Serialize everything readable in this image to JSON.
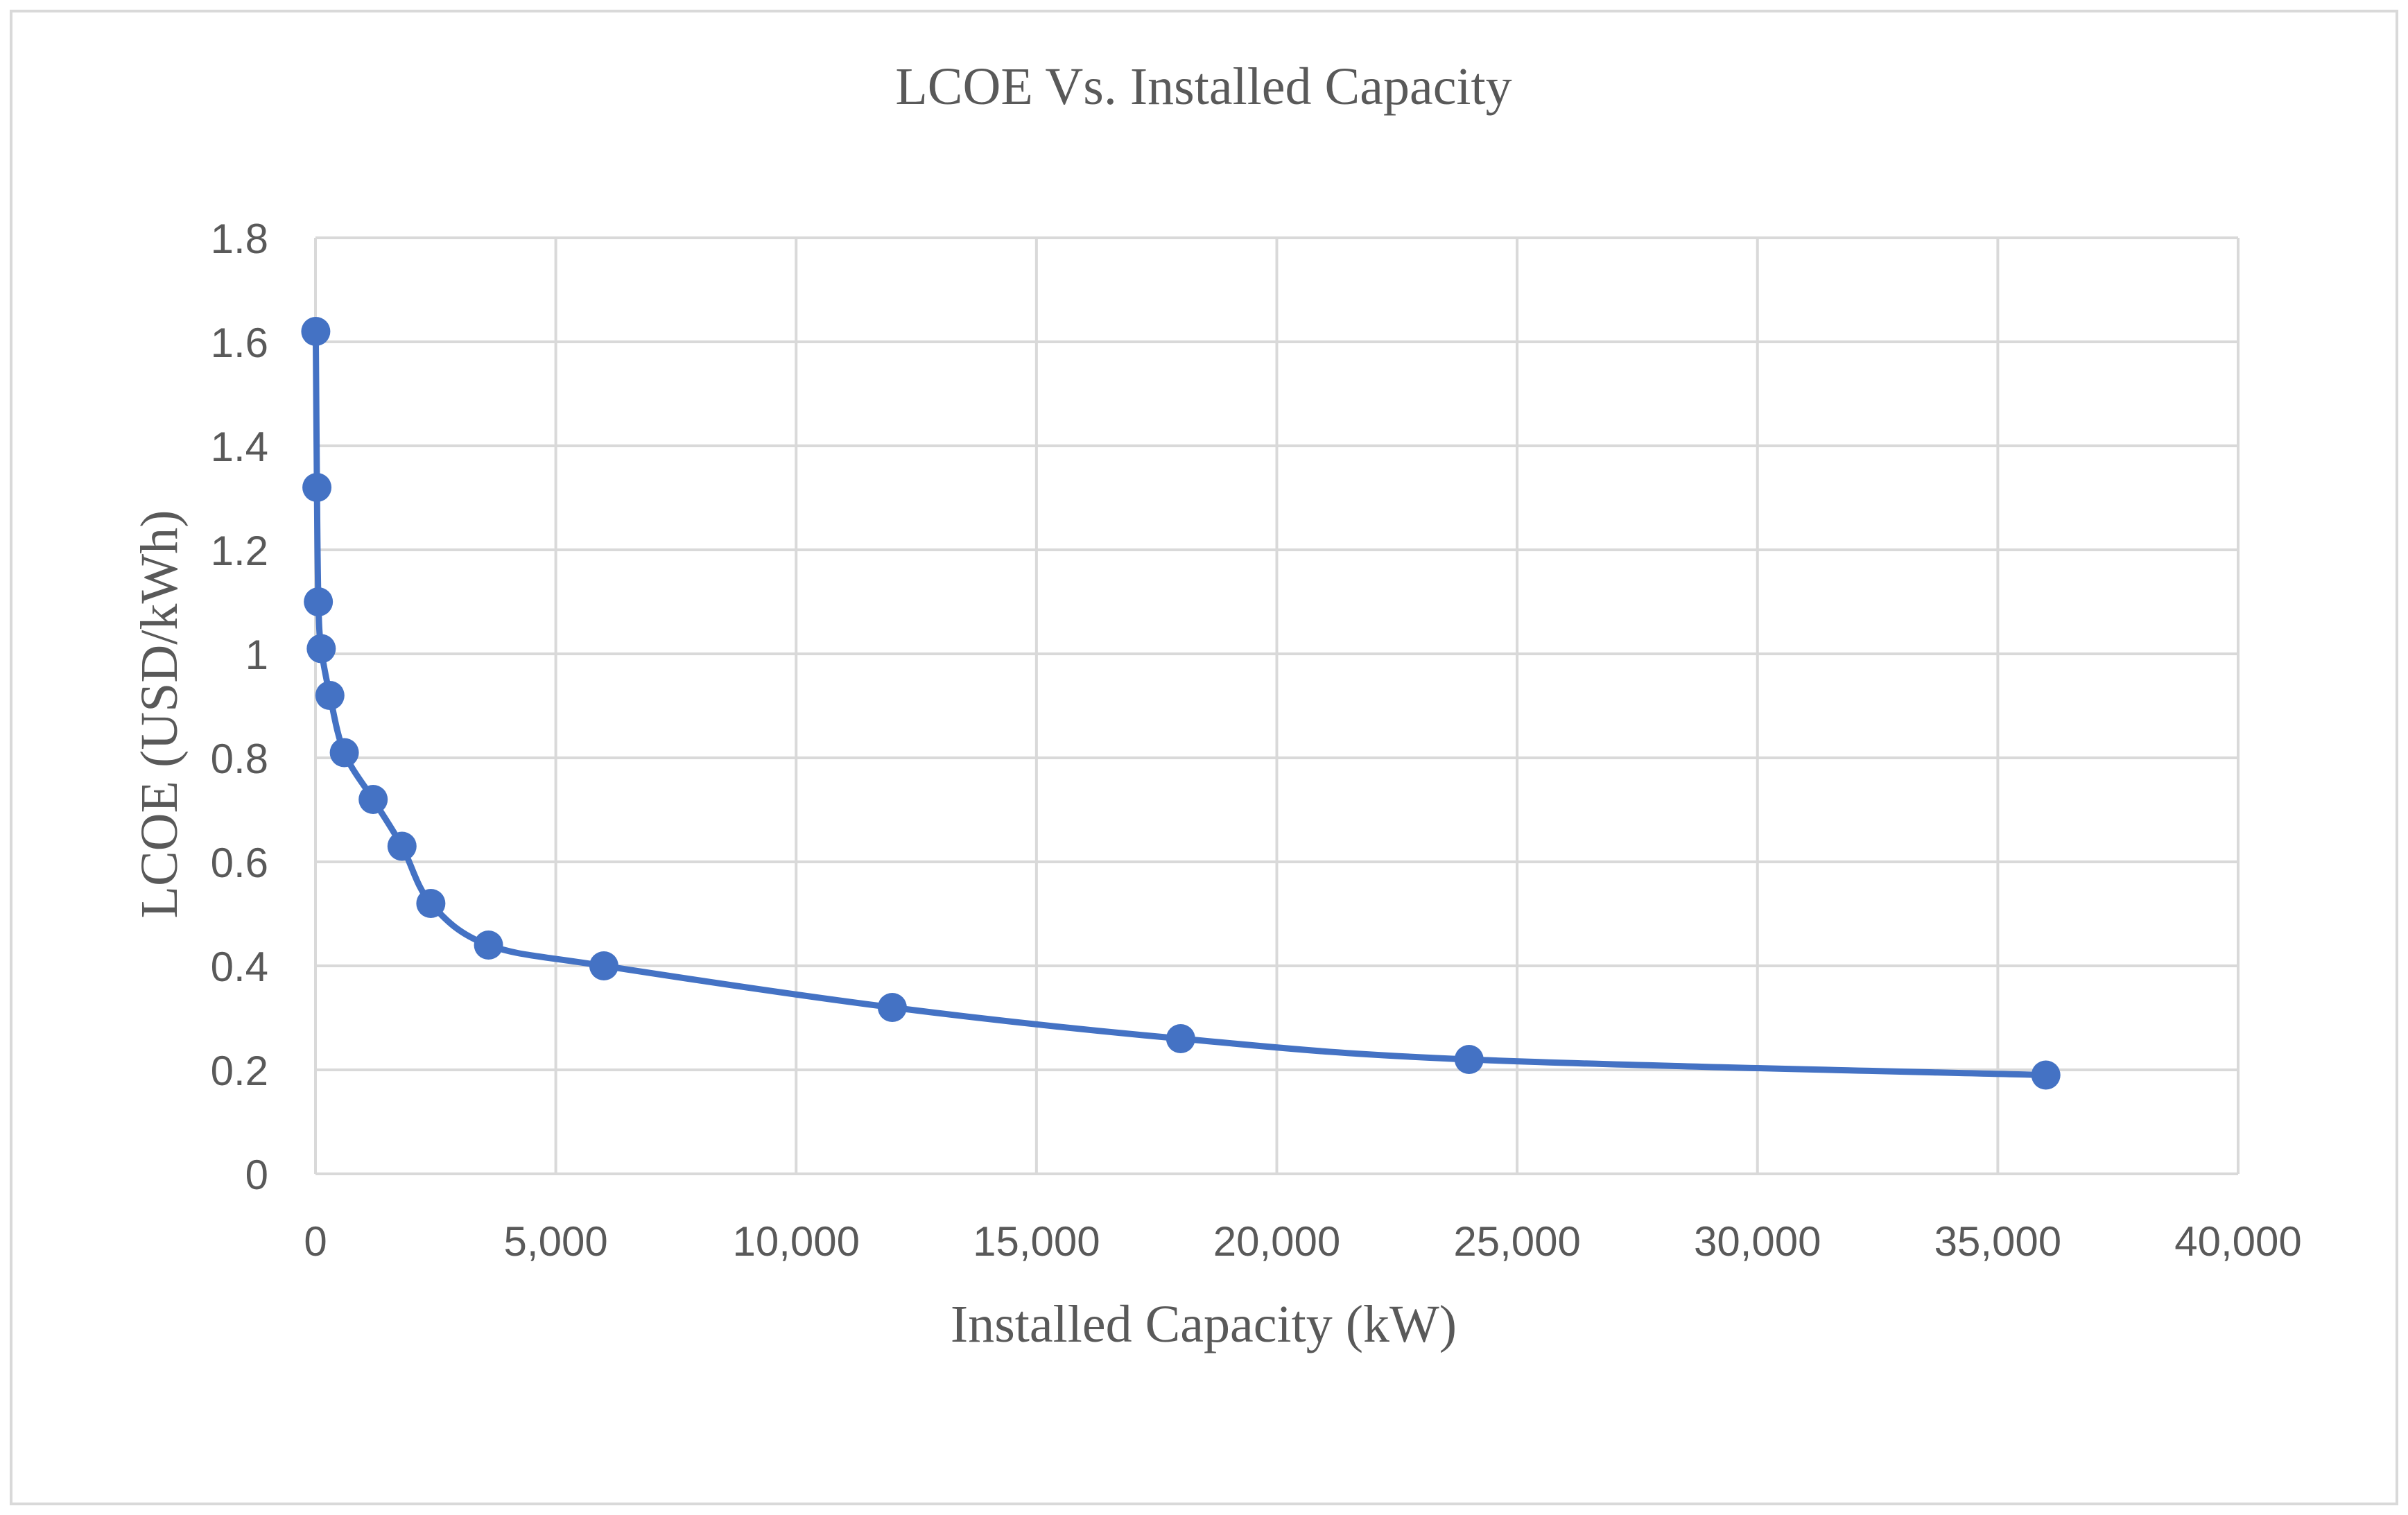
{
  "chart_data": {
    "type": "scatter",
    "title": "LCOE Vs. Installed Capacity",
    "xlabel": "Installed Capacity (kW)",
    "ylabel": "LCOE (USD/kWh)",
    "xlim": [
      0,
      40000
    ],
    "ylim": [
      0,
      1.8
    ],
    "x_ticks": [
      0,
      5000,
      10000,
      15000,
      20000,
      25000,
      30000,
      35000,
      40000
    ],
    "x_tick_labels": [
      "0",
      "5,000",
      "10,000",
      "15,000",
      "20,000",
      "25,000",
      "30,000",
      "35,000",
      "40,000"
    ],
    "y_ticks": [
      0,
      0.2,
      0.4,
      0.6,
      0.8,
      1.0,
      1.2,
      1.4,
      1.6,
      1.8
    ],
    "y_tick_labels": [
      "0",
      "0.2",
      "0.4",
      "0.6",
      "0.8",
      "1",
      "1.2",
      "1.4",
      "1.6",
      "1.8"
    ],
    "grid": true,
    "smooth_line": true,
    "series": [
      {
        "name": "LCOE",
        "color": "#4472c4",
        "x": [
          6,
          30,
          60,
          120,
          300,
          600,
          1200,
          1800,
          2400,
          3600,
          6000,
          12000,
          18000,
          24000,
          36000
        ],
        "y": [
          1.62,
          1.32,
          1.1,
          1.01,
          0.92,
          0.81,
          0.72,
          0.63,
          0.52,
          0.44,
          0.4,
          0.32,
          0.26,
          0.22,
          0.19
        ]
      }
    ]
  }
}
